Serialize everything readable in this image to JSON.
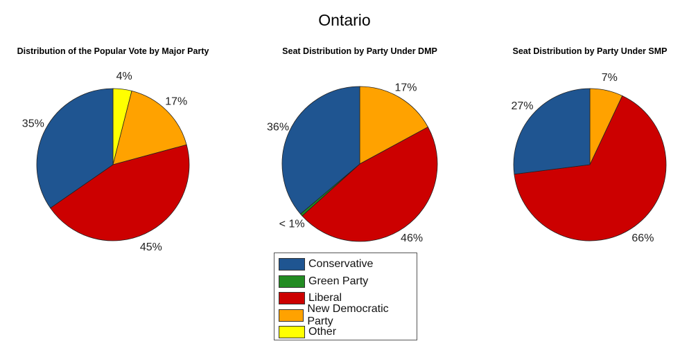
{
  "chart_data": [
    {
      "type": "pie",
      "suptitle": "Ontario",
      "title": "Distribution of the Popular Vote by Major Party",
      "slices": [
        {
          "category": "Other",
          "value": 4,
          "label": "4%"
        },
        {
          "category": "New Democratic Party",
          "value": 17,
          "label": "17%"
        },
        {
          "category": "Liberal",
          "value": 45,
          "label": "45%"
        },
        {
          "category": "Conservative",
          "value": 35,
          "label": "35%"
        }
      ]
    },
    {
      "type": "pie",
      "title": "Seat Distribution by Party Under DMP",
      "slices": [
        {
          "category": "New Democratic Party",
          "value": 17,
          "label": "17%"
        },
        {
          "category": "Liberal",
          "value": 46,
          "label": "46%"
        },
        {
          "category": "Green Party",
          "value": 0.5,
          "label": "< 1%"
        },
        {
          "category": "Conservative",
          "value": 36,
          "label": "36%"
        }
      ]
    },
    {
      "type": "pie",
      "title": "Seat Distribution by Party Under SMP",
      "slices": [
        {
          "category": "New Democratic Party",
          "value": 7,
          "label": "7%"
        },
        {
          "category": "Liberal",
          "value": 66,
          "label": "66%"
        },
        {
          "category": "Conservative",
          "value": 27,
          "label": "27%"
        }
      ]
    }
  ],
  "title": "Ontario",
  "legend": {
    "placement": "bottom-center",
    "items": [
      {
        "label": "Conservative",
        "color": "#1f5591"
      },
      {
        "label": "Green Party",
        "color": "#228b22"
      },
      {
        "label": "Liberal",
        "color": "#cc0000"
      },
      {
        "label": "New Democratic Party",
        "color": "#ffa200"
      },
      {
        "label": "Other",
        "color": "#ffff00"
      }
    ]
  }
}
